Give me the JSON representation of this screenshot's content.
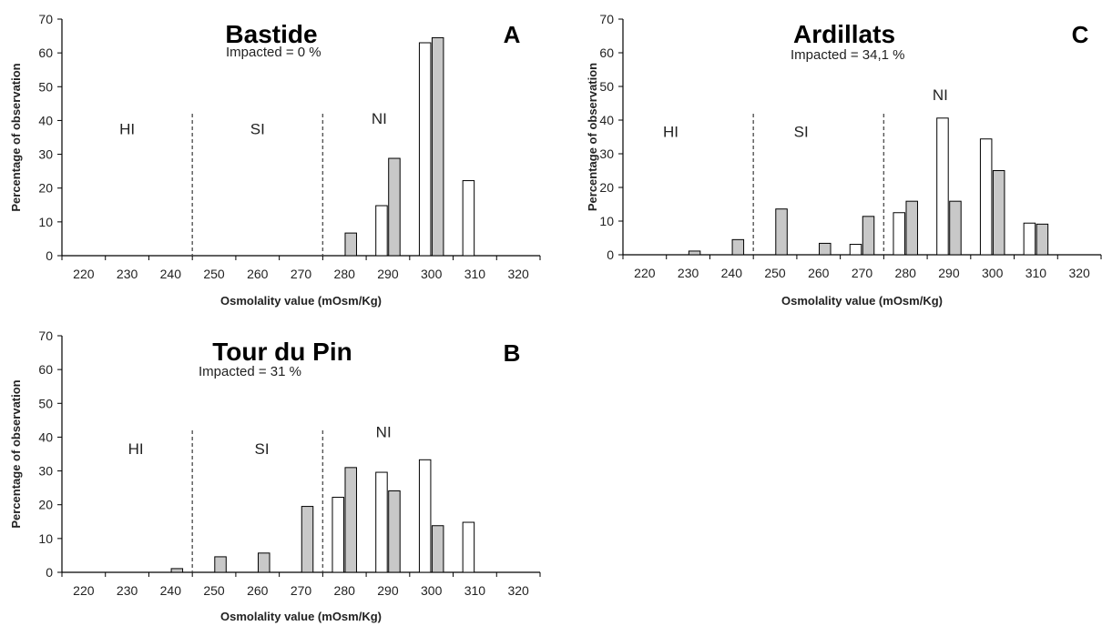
{
  "chart_data": [
    {
      "id": "A",
      "type": "bar",
      "title": "Bastide",
      "letter": "A",
      "subtitle": "Impacted = 0 %",
      "xlabel": "Osmolality value (mOsm/Kg)",
      "ylabel": "Percentage of observation",
      "ylim": [
        0,
        70
      ],
      "yticks": [
        0,
        10,
        20,
        30,
        40,
        50,
        60,
        70
      ],
      "categories": [
        "220",
        "230",
        "240",
        "250",
        "260",
        "270",
        "280",
        "290",
        "300",
        "310",
        "320"
      ],
      "series": [
        {
          "fill": "#ffffff",
          "values": [
            0,
            0,
            0,
            0,
            0,
            0,
            0,
            14.8,
            63,
            22.2,
            0
          ]
        },
        {
          "fill": "#c8c8c8",
          "values": [
            0,
            0,
            0,
            0,
            0,
            0,
            6.7,
            28.8,
            64.5,
            0,
            0
          ]
        }
      ],
      "dividers": [
        245,
        275
      ],
      "zones": [
        {
          "label": "HI",
          "x": 230,
          "y": 36
        },
        {
          "label": "SI",
          "x": 260,
          "y": 36
        },
        {
          "label": "NI",
          "x": 288,
          "y": 39
        }
      ],
      "grid": false
    },
    {
      "id": "B",
      "type": "bar",
      "title": "Tour du Pin",
      "letter": "B",
      "subtitle": "Impacted = 31 %",
      "xlabel": "Osmolality value (mOsm/Kg)",
      "ylabel": "Percentage of observation",
      "ylim": [
        0,
        70
      ],
      "yticks": [
        0,
        10,
        20,
        30,
        40,
        50,
        60,
        70
      ],
      "categories": [
        "220",
        "230",
        "240",
        "250",
        "260",
        "270",
        "280",
        "290",
        "300",
        "310",
        "320"
      ],
      "series": [
        {
          "fill": "#ffffff",
          "values": [
            0,
            0,
            0,
            0,
            0,
            0,
            22.2,
            29.6,
            33.3,
            14.8,
            0
          ]
        },
        {
          "fill": "#c8c8c8",
          "values": [
            0,
            0,
            1.1,
            4.6,
            5.7,
            19.5,
            31,
            24.1,
            13.8,
            0,
            0
          ]
        }
      ],
      "dividers": [
        245,
        275
      ],
      "zones": [
        {
          "label": "HI",
          "x": 232,
          "y": 35
        },
        {
          "label": "SI",
          "x": 261,
          "y": 35
        },
        {
          "label": "NI",
          "x": 289,
          "y": 40
        }
      ],
      "grid": false
    },
    {
      "id": "C",
      "type": "bar",
      "title": "Ardillats",
      "letter": "C",
      "subtitle": "Impacted = 34,1 %",
      "xlabel": "Osmolality value (mOsm/Kg)",
      "ylabel": "Percentage of observation",
      "ylim": [
        0,
        70
      ],
      "yticks": [
        0,
        10,
        20,
        30,
        40,
        50,
        60,
        70
      ],
      "categories": [
        "220",
        "230",
        "240",
        "250",
        "260",
        "270",
        "280",
        "290",
        "300",
        "310",
        "320"
      ],
      "series": [
        {
          "fill": "#ffffff",
          "values": [
            0,
            0,
            0,
            0,
            0,
            3.1,
            12.5,
            40.6,
            34.4,
            9.4,
            0
          ]
        },
        {
          "fill": "#c8c8c8",
          "values": [
            0,
            1.1,
            4.5,
            13.6,
            3.4,
            11.4,
            15.9,
            15.9,
            25,
            9.1,
            0
          ]
        }
      ],
      "dividers": [
        245,
        275
      ],
      "zones": [
        {
          "label": "HI",
          "x": 226,
          "y": 35
        },
        {
          "label": "SI",
          "x": 256,
          "y": 35
        },
        {
          "label": "NI",
          "x": 288,
          "y": 46
        }
      ],
      "grid": false
    }
  ]
}
